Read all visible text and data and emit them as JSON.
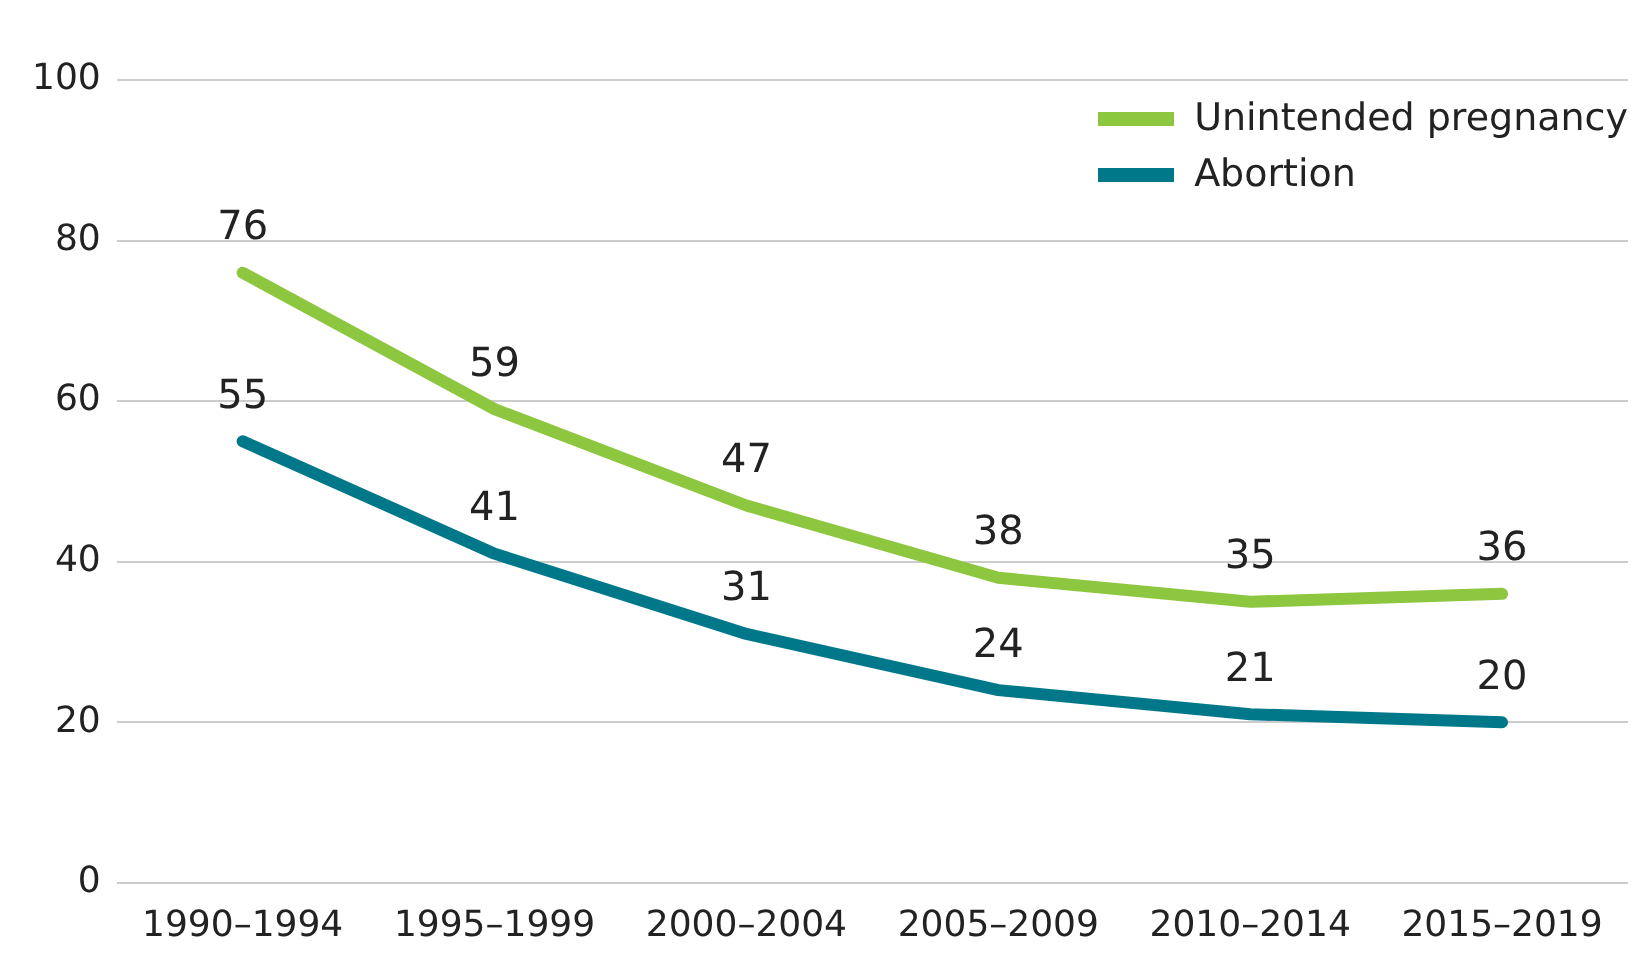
{
  "chart_data": {
    "type": "line",
    "categories": [
      "1990–1994",
      "1995–1999",
      "2000–2004",
      "2005–2009",
      "2010–2014",
      "2015–2019"
    ],
    "series": [
      {
        "name": "Unintended pregnancy",
        "color": "#8dc63f",
        "values": [
          76,
          59,
          47,
          38,
          35,
          36
        ]
      },
      {
        "name": "Abortion",
        "color": "#00788a",
        "values": [
          55,
          41,
          31,
          24,
          21,
          20
        ]
      }
    ],
    "ylim": [
      0,
      100
    ],
    "yticks": [
      0,
      20,
      40,
      60,
      80,
      100
    ],
    "grid": "y",
    "legend": "top right",
    "data_labels": true,
    "marker": "none",
    "line_style": "solid"
  }
}
